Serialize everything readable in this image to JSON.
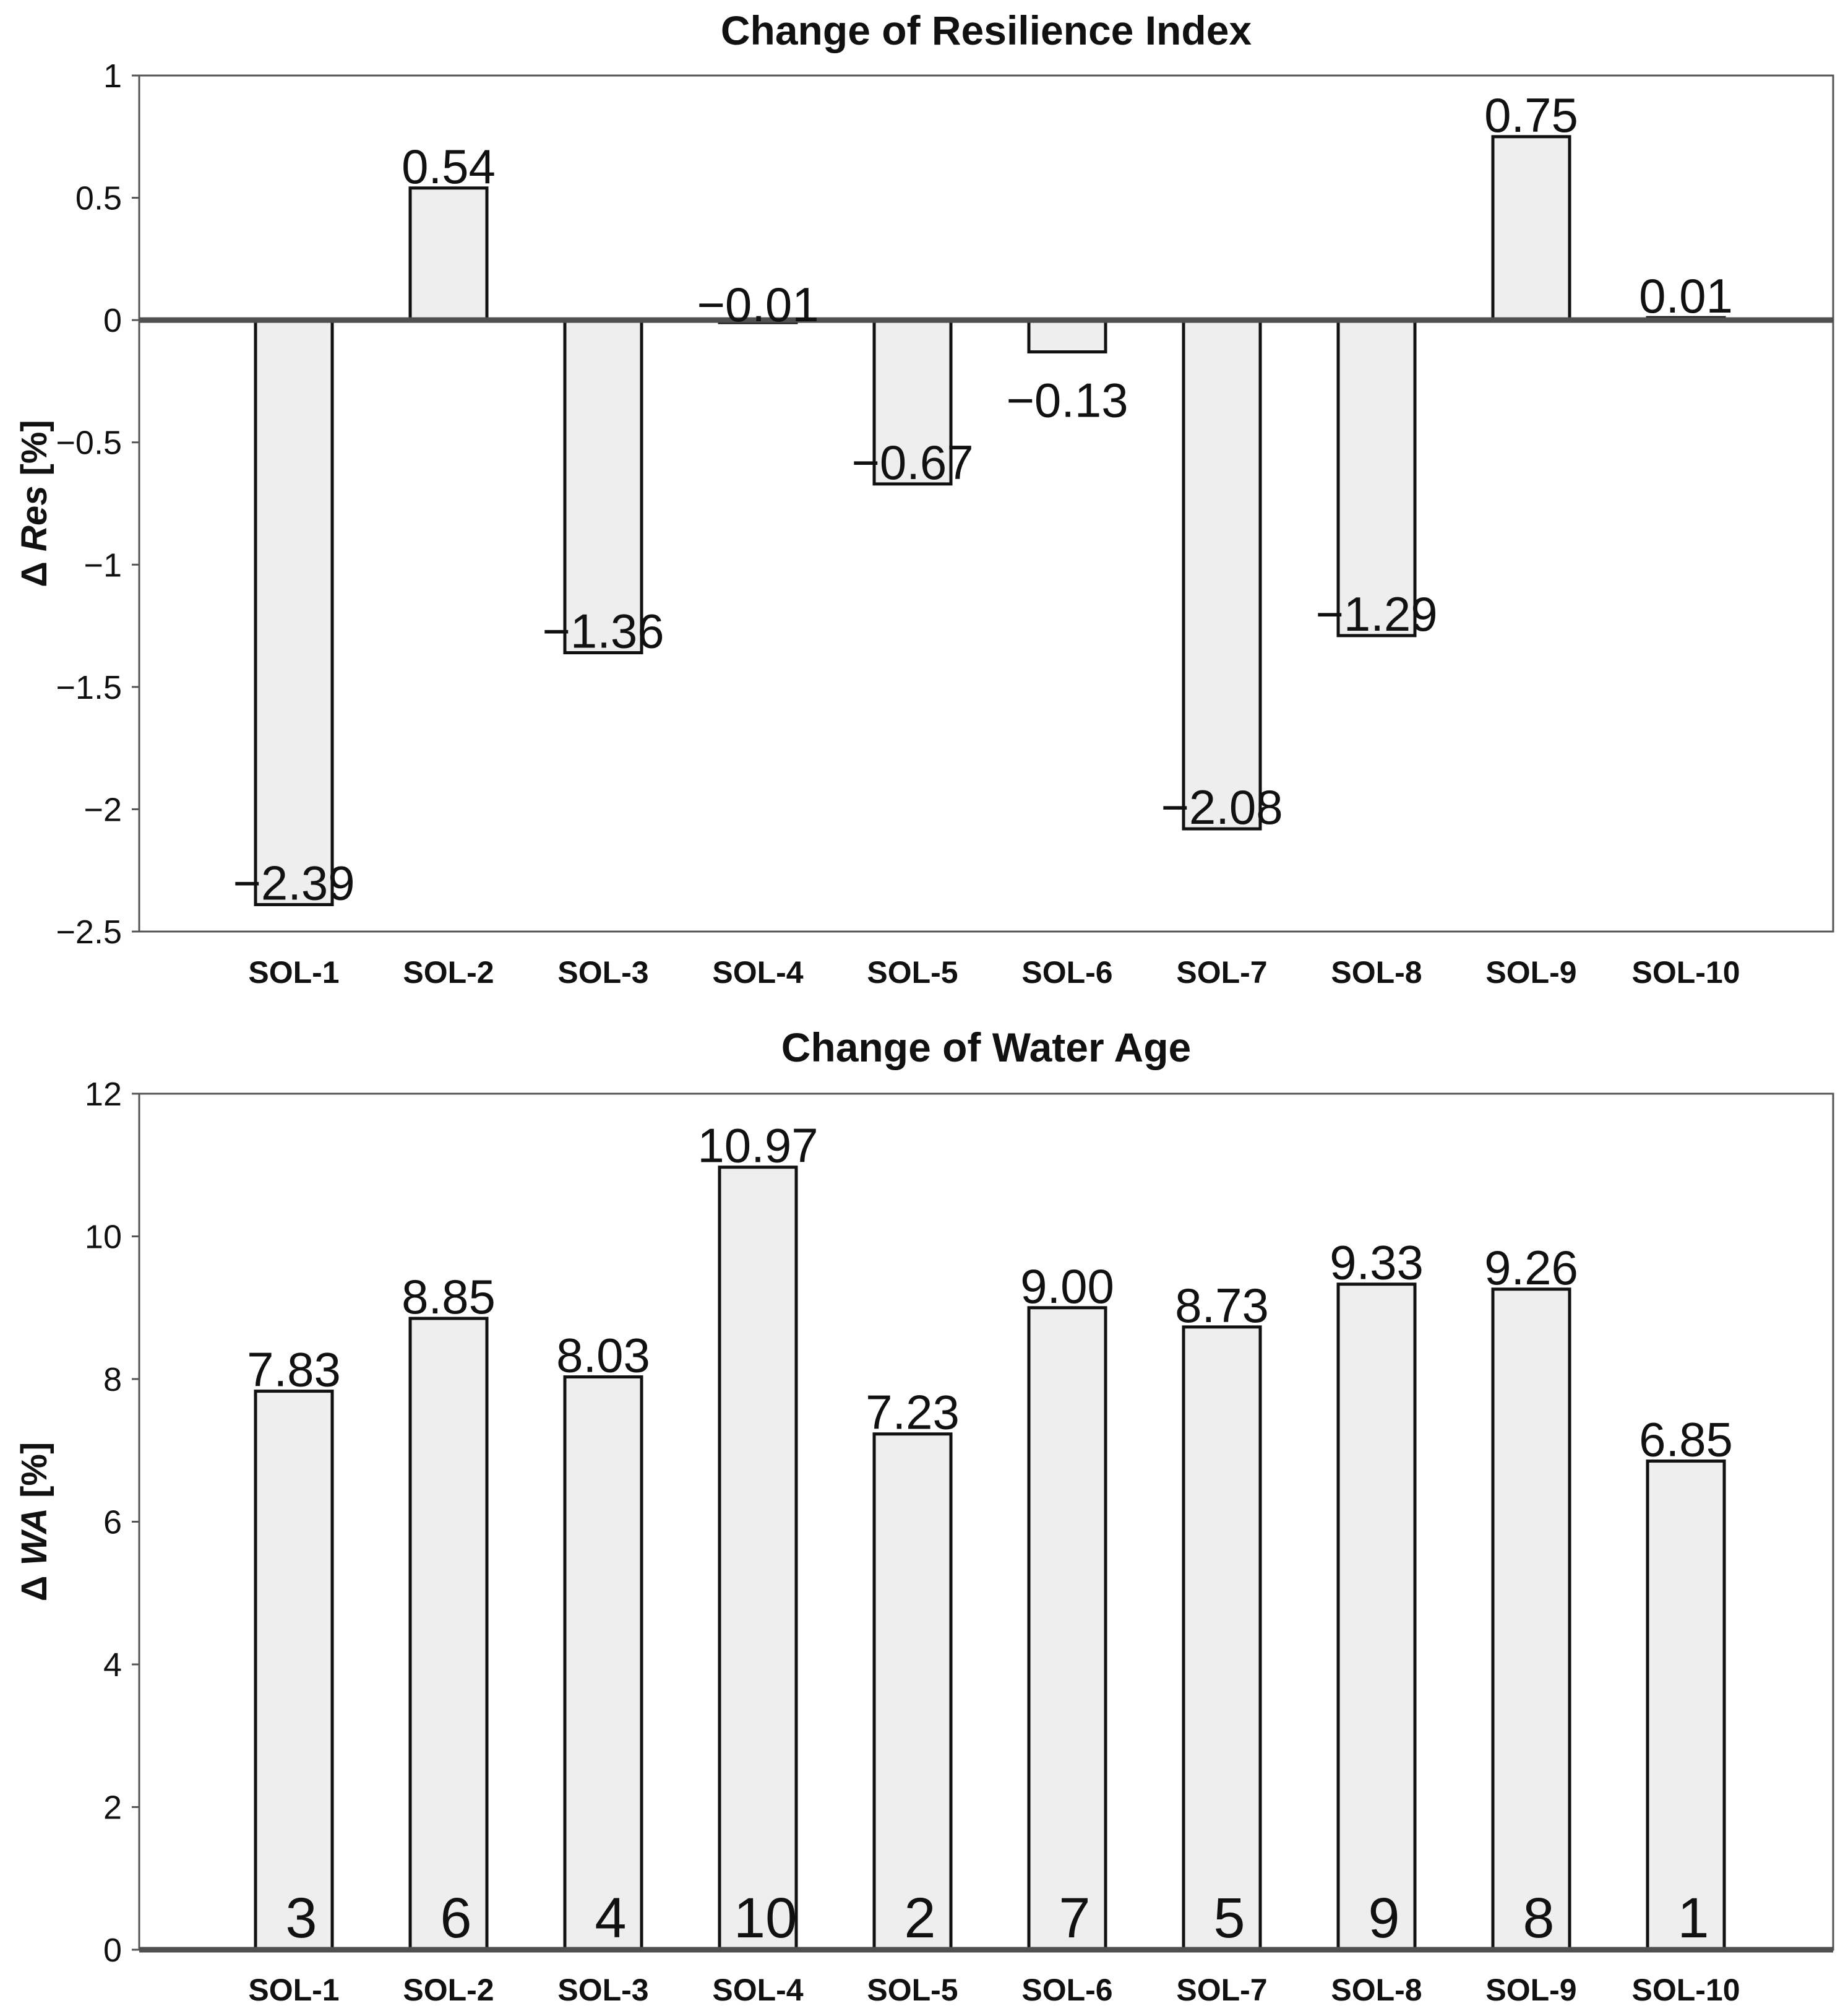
{
  "chart_data": [
    {
      "type": "bar",
      "title": "Change of Resilience Index",
      "ylabel_prefix": "Δ ",
      "ylabel_var": "Res",
      "ylabel_unit": " [%]",
      "ylim": [
        -2.5,
        1
      ],
      "yticks": [
        1,
        0.5,
        0,
        -0.5,
        -1,
        -1.5,
        -2,
        -2.5
      ],
      "ytick_labels": [
        "1",
        "0.5",
        "0",
        "−0.5",
        "−1",
        "−1.5",
        "−2",
        "−2.5"
      ],
      "categories": [
        "SOL-1",
        "SOL-2",
        "SOL-3",
        "SOL-4",
        "SOL-5",
        "SOL-6",
        "SOL-7",
        "SOL-8",
        "SOL-9",
        "SOL-10"
      ],
      "values": [
        -2.39,
        0.54,
        -1.36,
        -0.01,
        -0.67,
        -0.13,
        -2.08,
        -1.29,
        0.75,
        0.01
      ],
      "value_labels": [
        "−2.39",
        "0.54",
        "−1.36",
        "−0.01",
        "−0.67",
        "−0.13",
        "−2.08",
        "−1.29",
        "0.75",
        "0.01"
      ]
    },
    {
      "type": "bar",
      "title": "Change of Water Age",
      "ylabel_prefix": "Δ ",
      "ylabel_var": "WA",
      "ylabel_unit": " [%]",
      "ylim": [
        0,
        12
      ],
      "yticks": [
        12,
        10,
        8,
        6,
        4,
        2,
        0
      ],
      "ytick_labels": [
        "12",
        "10",
        "8",
        "6",
        "4",
        "2",
        "0"
      ],
      "categories": [
        "SOL-1",
        "SOL-2",
        "SOL-3",
        "SOL-4",
        "SOL-5",
        "SOL-6",
        "SOL-7",
        "SOL-8",
        "SOL-9",
        "SOL-10"
      ],
      "values": [
        7.83,
        8.85,
        8.03,
        10.97,
        7.23,
        9.0,
        8.73,
        9.33,
        9.26,
        6.85
      ],
      "value_labels": [
        "7.83",
        "8.85",
        "8.03",
        "10.97",
        "7.23",
        "9.00",
        "8.73",
        "9.33",
        "9.26",
        "6.85"
      ],
      "ranks": [
        "3",
        "6",
        "4",
        "10",
        "2",
        "7",
        "5",
        "9",
        "8",
        "1"
      ]
    }
  ]
}
